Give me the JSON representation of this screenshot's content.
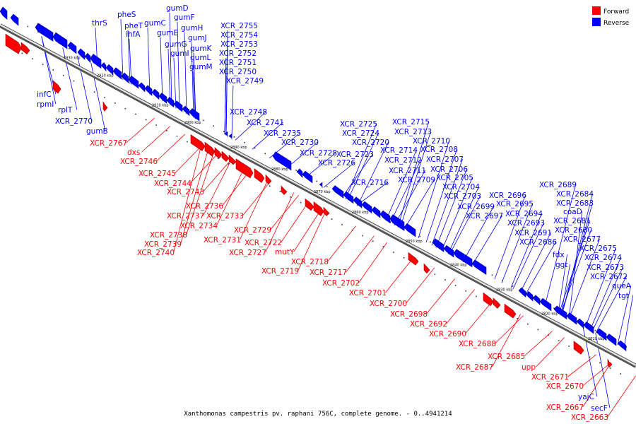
{
  "caption": "Xanthomonas campestris pv. raphani 756C, complete genome. - 0..4941214",
  "legend": [
    {
      "label": "Forward",
      "color": "#ff0000"
    },
    {
      "label": "Reverse",
      "color": "#0000ff"
    }
  ],
  "strand_colors": {
    "forward": "#ff0000",
    "reverse": "#0000ff"
  },
  "axis_ticks": [
    "2930 kbp",
    "2920 kbp",
    "2910 kbp",
    "2900 kbp",
    "2890 kbp",
    "2880 kbp",
    "2870 kbp",
    "2860 kbp",
    "2850 kbp",
    "2840 kbp",
    "2830 kbp",
    "2820 kbp",
    "2810 kbp"
  ],
  "reverse_labels": [
    "thrS",
    "pheS",
    "pheT",
    "ihfA",
    "gumD",
    "gumF",
    "gumC",
    "gumE",
    "gumH",
    "gumG",
    "gumJ",
    "gumI",
    "gumK",
    "gumL",
    "gumM",
    "XCR_2755",
    "XCR_2754",
    "XCR_2753",
    "XCR_2752",
    "XCR_2751",
    "XCR_2750",
    "XCR_2749",
    "infC",
    "rpmI",
    "rplT",
    "XCR_2770",
    "gumB",
    "XCR_2748",
    "XCR_2741",
    "XCR_2735",
    "XCR_2730",
    "XCR_2728",
    "XCR_2726",
    "XCR_2725",
    "XCR_2724",
    "XCR_2720",
    "XCR_2723",
    "XCR_2716",
    "XCR_2715",
    "XCR_2713",
    "XCR_2714",
    "XCR_2712",
    "XCR_2711",
    "XCR_2709",
    "XCR_2710",
    "XCR_2708",
    "XCR_2707",
    "XCR_2706",
    "XCR_2705",
    "XCR_2704",
    "XCR_2703",
    "XCR_2699",
    "XCR_2697",
    "XCR_2696",
    "XCR_2695",
    "XCR_2694",
    "XCR_2693",
    "XCR_2691",
    "XCR_2686",
    "XCR_2689",
    "XCR_2684",
    "XCR_2683",
    "coaD",
    "XCR_2681",
    "XCR_2680",
    "XCR_2677",
    "XCR_2675",
    "fdx",
    "ggt",
    "XCR_2674",
    "XCR_2673",
    "XCR_2672",
    "queA",
    "tgt",
    "yajC",
    "secF"
  ],
  "forward_labels": [
    "XCR_2767",
    "dxs",
    "XCR_2746",
    "XCR_2745",
    "XCR_2744",
    "XCR_2743",
    "XCR_2736",
    "XCR_2737",
    "XCR_2733",
    "XCR_2734",
    "XCR_2738",
    "XCR_2739",
    "XCR_2740",
    "XCR_2729",
    "XCR_2731",
    "XCR_2722",
    "XCR_2727",
    "mutY",
    "XCR_2718",
    "XCR_2719",
    "XCR_2717",
    "XCR_2702",
    "XCR_2701",
    "XCR_2700",
    "XCR_2698",
    "XCR_2692",
    "XCR_2690",
    "XCR_2688",
    "XCR_2687",
    "XCR_2685",
    "upp",
    "XCR_2671",
    "XCR_2670",
    "XCR_2667",
    "XCR_2663"
  ]
}
